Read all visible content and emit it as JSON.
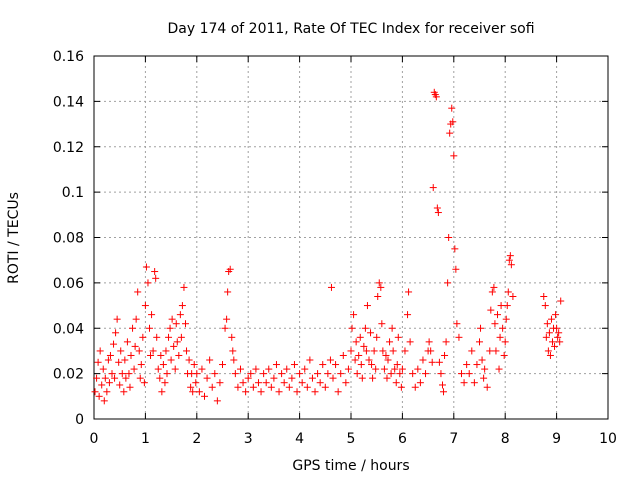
{
  "chart_data": {
    "type": "scatter",
    "title": "Day 174 of 2011, Rate Of TEC Index for receiver sofi",
    "xlabel": "GPS time / hours",
    "ylabel": "ROTI / TECUs",
    "xlim": [
      0,
      10
    ],
    "ylim": [
      0,
      0.16
    ],
    "x_ticks": [
      0,
      1,
      2,
      3,
      4,
      5,
      6,
      7,
      8,
      9,
      10
    ],
    "x_tick_labels": [
      "0",
      "1",
      "2",
      "3",
      "4",
      "5",
      "6",
      "7",
      "8",
      "9",
      "10"
    ],
    "y_ticks": [
      0,
      0.02,
      0.04,
      0.06,
      0.08,
      0.1,
      0.12,
      0.14,
      0.16
    ],
    "y_tick_labels": [
      "0",
      "0.02",
      "0.04",
      "0.06",
      "0.08",
      "0.1",
      "0.12",
      "0.14",
      "0.16"
    ],
    "grid": true,
    "marker": "+",
    "series": [
      {
        "name": "ROTI",
        "color": "#ff0000",
        "points": [
          [
            0.02,
            0.012
          ],
          [
            0.05,
            0.018
          ],
          [
            0.08,
            0.025
          ],
          [
            0.1,
            0.01
          ],
          [
            0.12,
            0.03
          ],
          [
            0.15,
            0.015
          ],
          [
            0.18,
            0.022
          ],
          [
            0.2,
            0.008
          ],
          [
            0.22,
            0.018
          ],
          [
            0.25,
            0.012
          ],
          [
            0.28,
            0.026
          ],
          [
            0.3,
            0.016
          ],
          [
            0.32,
            0.028
          ],
          [
            0.35,
            0.02
          ],
          [
            0.38,
            0.033
          ],
          [
            0.4,
            0.018
          ],
          [
            0.42,
            0.038
          ],
          [
            0.45,
            0.044
          ],
          [
            0.48,
            0.025
          ],
          [
            0.5,
            0.015
          ],
          [
            0.52,
            0.03
          ],
          [
            0.55,
            0.02
          ],
          [
            0.58,
            0.012
          ],
          [
            0.6,
            0.026
          ],
          [
            0.62,
            0.018
          ],
          [
            0.65,
            0.034
          ],
          [
            0.68,
            0.02
          ],
          [
            0.7,
            0.014
          ],
          [
            0.72,
            0.028
          ],
          [
            0.75,
            0.04
          ],
          [
            0.78,
            0.022
          ],
          [
            0.8,
            0.032
          ],
          [
            0.82,
            0.044
          ],
          [
            0.85,
            0.056
          ],
          [
            0.88,
            0.03
          ],
          [
            0.9,
            0.018
          ],
          [
            0.92,
            0.024
          ],
          [
            0.95,
            0.036
          ],
          [
            0.98,
            0.016
          ],
          [
            1.0,
            0.05
          ],
          [
            1.02,
            0.067
          ],
          [
            1.05,
            0.06
          ],
          [
            1.08,
            0.04
          ],
          [
            1.1,
            0.028
          ],
          [
            1.12,
            0.046
          ],
          [
            1.15,
            0.03
          ],
          [
            1.18,
            0.065
          ],
          [
            1.2,
            0.062
          ],
          [
            1.22,
            0.036
          ],
          [
            1.25,
            0.022
          ],
          [
            1.28,
            0.018
          ],
          [
            1.3,
            0.028
          ],
          [
            1.32,
            0.012
          ],
          [
            1.35,
            0.024
          ],
          [
            1.38,
            0.016
          ],
          [
            1.4,
            0.03
          ],
          [
            1.42,
            0.02
          ],
          [
            1.45,
            0.036
          ],
          [
            1.48,
            0.04
          ],
          [
            1.5,
            0.026
          ],
          [
            1.52,
            0.044
          ],
          [
            1.55,
            0.032
          ],
          [
            1.58,
            0.022
          ],
          [
            1.6,
            0.042
          ],
          [
            1.62,
            0.034
          ],
          [
            1.65,
            0.028
          ],
          [
            1.68,
            0.046
          ],
          [
            1.7,
            0.036
          ],
          [
            1.72,
            0.05
          ],
          [
            1.75,
            0.058
          ],
          [
            1.78,
            0.042
          ],
          [
            1.8,
            0.03
          ],
          [
            1.82,
            0.02
          ],
          [
            1.85,
            0.026
          ],
          [
            1.88,
            0.014
          ],
          [
            1.9,
            0.02
          ],
          [
            1.92,
            0.012
          ],
          [
            1.95,
            0.024
          ],
          [
            1.98,
            0.016
          ],
          [
            2.0,
            0.02
          ],
          [
            2.05,
            0.012
          ],
          [
            2.1,
            0.022
          ],
          [
            2.15,
            0.01
          ],
          [
            2.2,
            0.018
          ],
          [
            2.25,
            0.026
          ],
          [
            2.3,
            0.014
          ],
          [
            2.35,
            0.02
          ],
          [
            2.4,
            0.008
          ],
          [
            2.45,
            0.016
          ],
          [
            2.5,
            0.024
          ],
          [
            2.55,
            0.04
          ],
          [
            2.58,
            0.044
          ],
          [
            2.6,
            0.056
          ],
          [
            2.62,
            0.065
          ],
          [
            2.65,
            0.066
          ],
          [
            2.68,
            0.036
          ],
          [
            2.7,
            0.03
          ],
          [
            2.72,
            0.026
          ],
          [
            2.75,
            0.02
          ],
          [
            2.8,
            0.014
          ],
          [
            2.85,
            0.022
          ],
          [
            2.9,
            0.016
          ],
          [
            2.95,
            0.012
          ],
          [
            3.0,
            0.018
          ],
          [
            3.05,
            0.02
          ],
          [
            3.1,
            0.014
          ],
          [
            3.15,
            0.022
          ],
          [
            3.2,
            0.016
          ],
          [
            3.25,
            0.012
          ],
          [
            3.3,
            0.02
          ],
          [
            3.35,
            0.016
          ],
          [
            3.4,
            0.022
          ],
          [
            3.45,
            0.014
          ],
          [
            3.5,
            0.018
          ],
          [
            3.55,
            0.024
          ],
          [
            3.6,
            0.012
          ],
          [
            3.65,
            0.02
          ],
          [
            3.7,
            0.016
          ],
          [
            3.75,
            0.022
          ],
          [
            3.8,
            0.014
          ],
          [
            3.85,
            0.018
          ],
          [
            3.9,
            0.024
          ],
          [
            3.95,
            0.012
          ],
          [
            4.0,
            0.02
          ],
          [
            4.05,
            0.016
          ],
          [
            4.1,
            0.022
          ],
          [
            4.15,
            0.014
          ],
          [
            4.2,
            0.026
          ],
          [
            4.25,
            0.018
          ],
          [
            4.3,
            0.012
          ],
          [
            4.35,
            0.02
          ],
          [
            4.4,
            0.016
          ],
          [
            4.45,
            0.024
          ],
          [
            4.5,
            0.014
          ],
          [
            4.55,
            0.02
          ],
          [
            4.6,
            0.026
          ],
          [
            4.62,
            0.058
          ],
          [
            4.65,
            0.018
          ],
          [
            4.7,
            0.024
          ],
          [
            4.75,
            0.012
          ],
          [
            4.8,
            0.02
          ],
          [
            4.85,
            0.028
          ],
          [
            4.9,
            0.016
          ],
          [
            4.95,
            0.022
          ],
          [
            5.0,
            0.03
          ],
          [
            5.02,
            0.04
          ],
          [
            5.05,
            0.046
          ],
          [
            5.08,
            0.026
          ],
          [
            5.1,
            0.034
          ],
          [
            5.12,
            0.02
          ],
          [
            5.15,
            0.028
          ],
          [
            5.18,
            0.036
          ],
          [
            5.2,
            0.024
          ],
          [
            5.22,
            0.018
          ],
          [
            5.25,
            0.032
          ],
          [
            5.28,
            0.04
          ],
          [
            5.3,
            0.03
          ],
          [
            5.32,
            0.05
          ],
          [
            5.35,
            0.026
          ],
          [
            5.38,
            0.038
          ],
          [
            5.4,
            0.024
          ],
          [
            5.42,
            0.018
          ],
          [
            5.45,
            0.03
          ],
          [
            5.48,
            0.022
          ],
          [
            5.5,
            0.036
          ],
          [
            5.52,
            0.054
          ],
          [
            5.55,
            0.06
          ],
          [
            5.58,
            0.058
          ],
          [
            5.6,
            0.042
          ],
          [
            5.62,
            0.03
          ],
          [
            5.65,
            0.022
          ],
          [
            5.68,
            0.028
          ],
          [
            5.7,
            0.018
          ],
          [
            5.72,
            0.026
          ],
          [
            5.75,
            0.034
          ],
          [
            5.78,
            0.02
          ],
          [
            5.8,
            0.04
          ],
          [
            5.82,
            0.03
          ],
          [
            5.85,
            0.022
          ],
          [
            5.88,
            0.016
          ],
          [
            5.9,
            0.024
          ],
          [
            5.92,
            0.036
          ],
          [
            5.95,
            0.02
          ],
          [
            5.98,
            0.014
          ],
          [
            6.0,
            0.022
          ],
          [
            6.05,
            0.03
          ],
          [
            6.1,
            0.046
          ],
          [
            6.12,
            0.056
          ],
          [
            6.15,
            0.034
          ],
          [
            6.2,
            0.02
          ],
          [
            6.25,
            0.014
          ],
          [
            6.3,
            0.022
          ],
          [
            6.35,
            0.016
          ],
          [
            6.4,
            0.026
          ],
          [
            6.45,
            0.02
          ],
          [
            6.5,
            0.03
          ],
          [
            6.52,
            0.034
          ],
          [
            6.55,
            0.03
          ],
          [
            6.58,
            0.025
          ],
          [
            6.6,
            0.102
          ],
          [
            6.62,
            0.144
          ],
          [
            6.64,
            0.143
          ],
          [
            6.66,
            0.142
          ],
          [
            6.68,
            0.093
          ],
          [
            6.7,
            0.091
          ],
          [
            6.72,
            0.025
          ],
          [
            6.75,
            0.02
          ],
          [
            6.78,
            0.015
          ],
          [
            6.8,
            0.012
          ],
          [
            6.82,
            0.028
          ],
          [
            6.85,
            0.034
          ],
          [
            6.88,
            0.06
          ],
          [
            6.9,
            0.08
          ],
          [
            6.92,
            0.126
          ],
          [
            6.94,
            0.13
          ],
          [
            6.96,
            0.137
          ],
          [
            6.98,
            0.131
          ],
          [
            7.0,
            0.116
          ],
          [
            7.02,
            0.075
          ],
          [
            7.04,
            0.066
          ],
          [
            7.06,
            0.042
          ],
          [
            7.1,
            0.036
          ],
          [
            7.15,
            0.02
          ],
          [
            7.2,
            0.016
          ],
          [
            7.25,
            0.024
          ],
          [
            7.3,
            0.02
          ],
          [
            7.35,
            0.03
          ],
          [
            7.4,
            0.016
          ],
          [
            7.45,
            0.024
          ],
          [
            7.5,
            0.034
          ],
          [
            7.52,
            0.04
          ],
          [
            7.55,
            0.026
          ],
          [
            7.58,
            0.018
          ],
          [
            7.6,
            0.022
          ],
          [
            7.65,
            0.014
          ],
          [
            7.7,
            0.03
          ],
          [
            7.72,
            0.048
          ],
          [
            7.75,
            0.056
          ],
          [
            7.78,
            0.058
          ],
          [
            7.8,
            0.042
          ],
          [
            7.82,
            0.03
          ],
          [
            7.85,
            0.046
          ],
          [
            7.88,
            0.022
          ],
          [
            7.9,
            0.036
          ],
          [
            7.92,
            0.05
          ],
          [
            7.95,
            0.04
          ],
          [
            7.98,
            0.028
          ],
          [
            8.0,
            0.034
          ],
          [
            8.02,
            0.044
          ],
          [
            8.04,
            0.05
          ],
          [
            8.06,
            0.056
          ],
          [
            8.08,
            0.07
          ],
          [
            8.1,
            0.072
          ],
          [
            8.12,
            0.068
          ],
          [
            8.15,
            0.054
          ],
          [
            8.75,
            0.054
          ],
          [
            8.78,
            0.05
          ],
          [
            8.8,
            0.036
          ],
          [
            8.82,
            0.042
          ],
          [
            8.84,
            0.03
          ],
          [
            8.86,
            0.038
          ],
          [
            8.88,
            0.028
          ],
          [
            8.9,
            0.044
          ],
          [
            8.92,
            0.034
          ],
          [
            8.94,
            0.04
          ],
          [
            8.96,
            0.032
          ],
          [
            8.98,
            0.046
          ],
          [
            9.0,
            0.04
          ],
          [
            9.02,
            0.036
          ],
          [
            9.04,
            0.038
          ],
          [
            9.06,
            0.034
          ],
          [
            9.08,
            0.052
          ]
        ]
      }
    ]
  }
}
